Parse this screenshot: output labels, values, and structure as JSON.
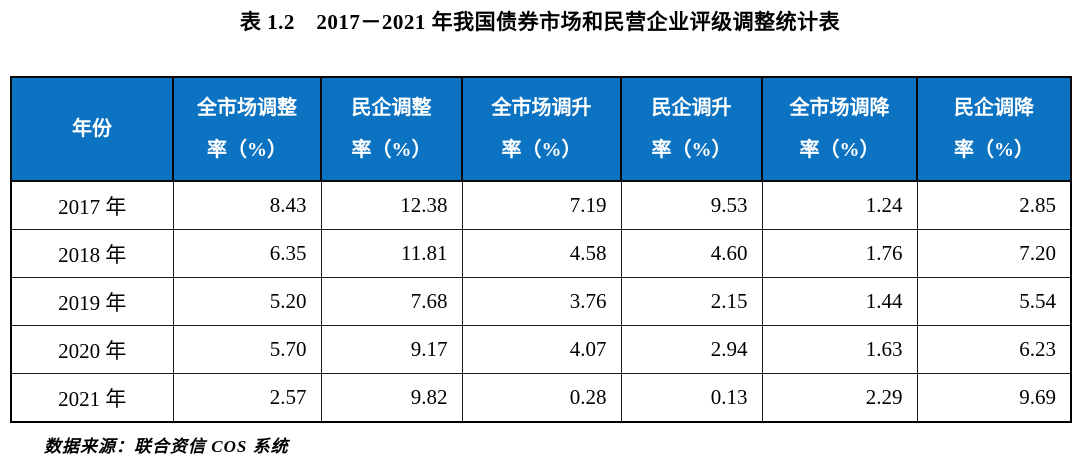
{
  "title": "表 1.2　2017－2021 年我国债券市场和民营企业评级调整统计表",
  "colors": {
    "header_bg": "#0c72c2",
    "header_text": "#ffffff",
    "border": "#000000",
    "page_bg": "#ffffff"
  },
  "table": {
    "headers": [
      {
        "line1": "年份",
        "line2": ""
      },
      {
        "line1": "全市场调整",
        "line2": "率（%）"
      },
      {
        "line1": "民企调整",
        "line2": "率（%）"
      },
      {
        "line1": "全市场调升",
        "line2": "率（%）"
      },
      {
        "line1": "民企调升",
        "line2": "率（%）"
      },
      {
        "line1": "全市场调降",
        "line2": "率（%）"
      },
      {
        "line1": "民企调降",
        "line2": "率（%）"
      }
    ],
    "rows": [
      {
        "year": "2017 年",
        "cells": [
          "8.43",
          "12.38",
          "7.19",
          "9.53",
          "1.24",
          "2.85"
        ]
      },
      {
        "year": "2018 年",
        "cells": [
          "6.35",
          "11.81",
          "4.58",
          "4.60",
          "1.76",
          "7.20"
        ]
      },
      {
        "year": "2019 年",
        "cells": [
          "5.20",
          "7.68",
          "3.76",
          "2.15",
          "1.44",
          "5.54"
        ]
      },
      {
        "year": "2020 年",
        "cells": [
          "5.70",
          "9.17",
          "4.07",
          "2.94",
          "1.63",
          "6.23"
        ]
      },
      {
        "year": "2021 年",
        "cells": [
          "2.57",
          "9.82",
          "0.28",
          "0.13",
          "2.29",
          "9.69"
        ]
      }
    ]
  },
  "source": "数据来源：联合资信 COS 系统"
}
